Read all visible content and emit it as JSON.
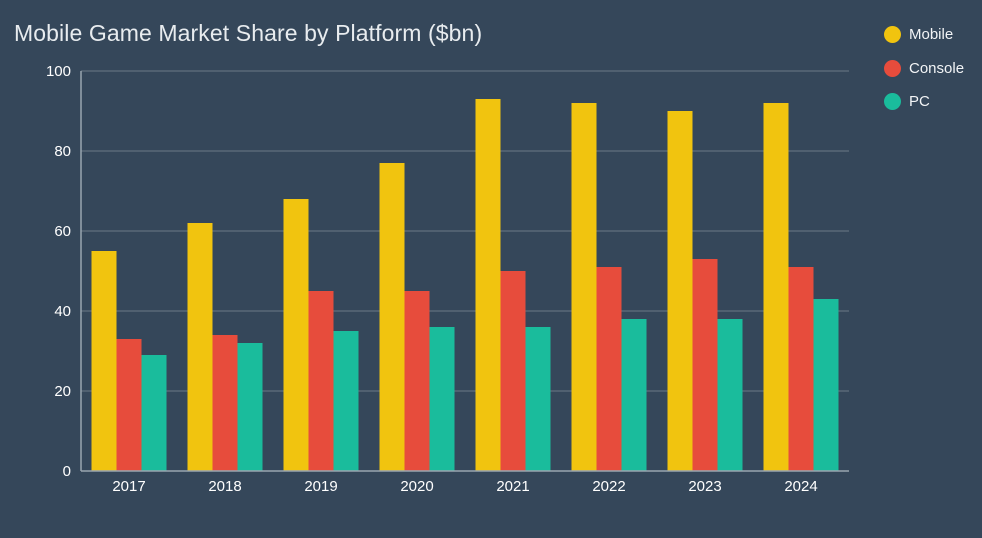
{
  "chart_data": {
    "type": "bar",
    "title": "Mobile Game Market Share by Platform ($bn)",
    "xlabel": "",
    "ylabel": "",
    "categories": [
      "2017",
      "2018",
      "2019",
      "2020",
      "2021",
      "2022",
      "2023",
      "2024"
    ],
    "series": [
      {
        "name": "Mobile",
        "color": "#f1c40f",
        "values": [
          55,
          62,
          68,
          77,
          93,
          92,
          90,
          92
        ]
      },
      {
        "name": "Console",
        "color": "#e74c3c",
        "values": [
          33,
          34,
          45,
          45,
          50,
          51,
          53,
          51
        ]
      },
      {
        "name": "PC",
        "color": "#1abc9c",
        "values": [
          29,
          32,
          35,
          36,
          36,
          38,
          38,
          43
        ]
      }
    ],
    "ylim": [
      0,
      100
    ],
    "yticks": [
      0,
      20,
      40,
      60,
      80,
      100
    ],
    "grid": true,
    "legend_position": "top-right"
  }
}
